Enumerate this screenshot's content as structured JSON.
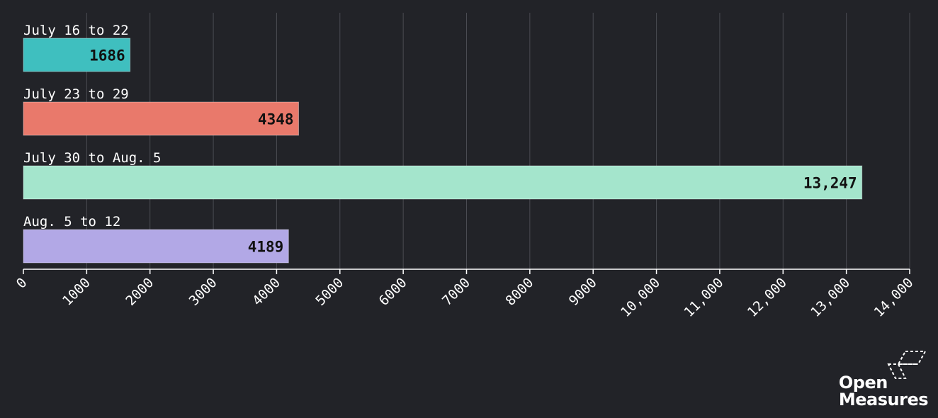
{
  "chart_data": {
    "type": "bar",
    "orientation": "horizontal",
    "categories": [
      "July 16 to 22",
      "July 23 to 29",
      "July 30 to Aug. 5",
      "Aug. 5 to 12"
    ],
    "values": [
      1686,
      4348,
      13247,
      4189
    ],
    "value_labels": [
      "1686",
      "4348",
      "13,247",
      "4189"
    ],
    "colors": [
      "#3fbfbf",
      "#e9796b",
      "#a4e5cc",
      "#b2a8e6"
    ],
    "xlim": [
      0,
      14000
    ],
    "xticks": [
      0,
      1000,
      2000,
      3000,
      4000,
      5000,
      6000,
      7000,
      8000,
      9000,
      10000,
      11000,
      12000,
      13000,
      14000
    ],
    "xtick_labels": [
      "0",
      "1000",
      "2000",
      "3000",
      "4000",
      "5000",
      "6000",
      "7000",
      "8000",
      "9000",
      "10,000",
      "11,000",
      "12,000",
      "13,000",
      "14,000"
    ],
    "grid": true,
    "title": "",
    "xlabel": "",
    "ylabel": ""
  },
  "logo": {
    "line1": "Open",
    "line2": "Measures"
  }
}
